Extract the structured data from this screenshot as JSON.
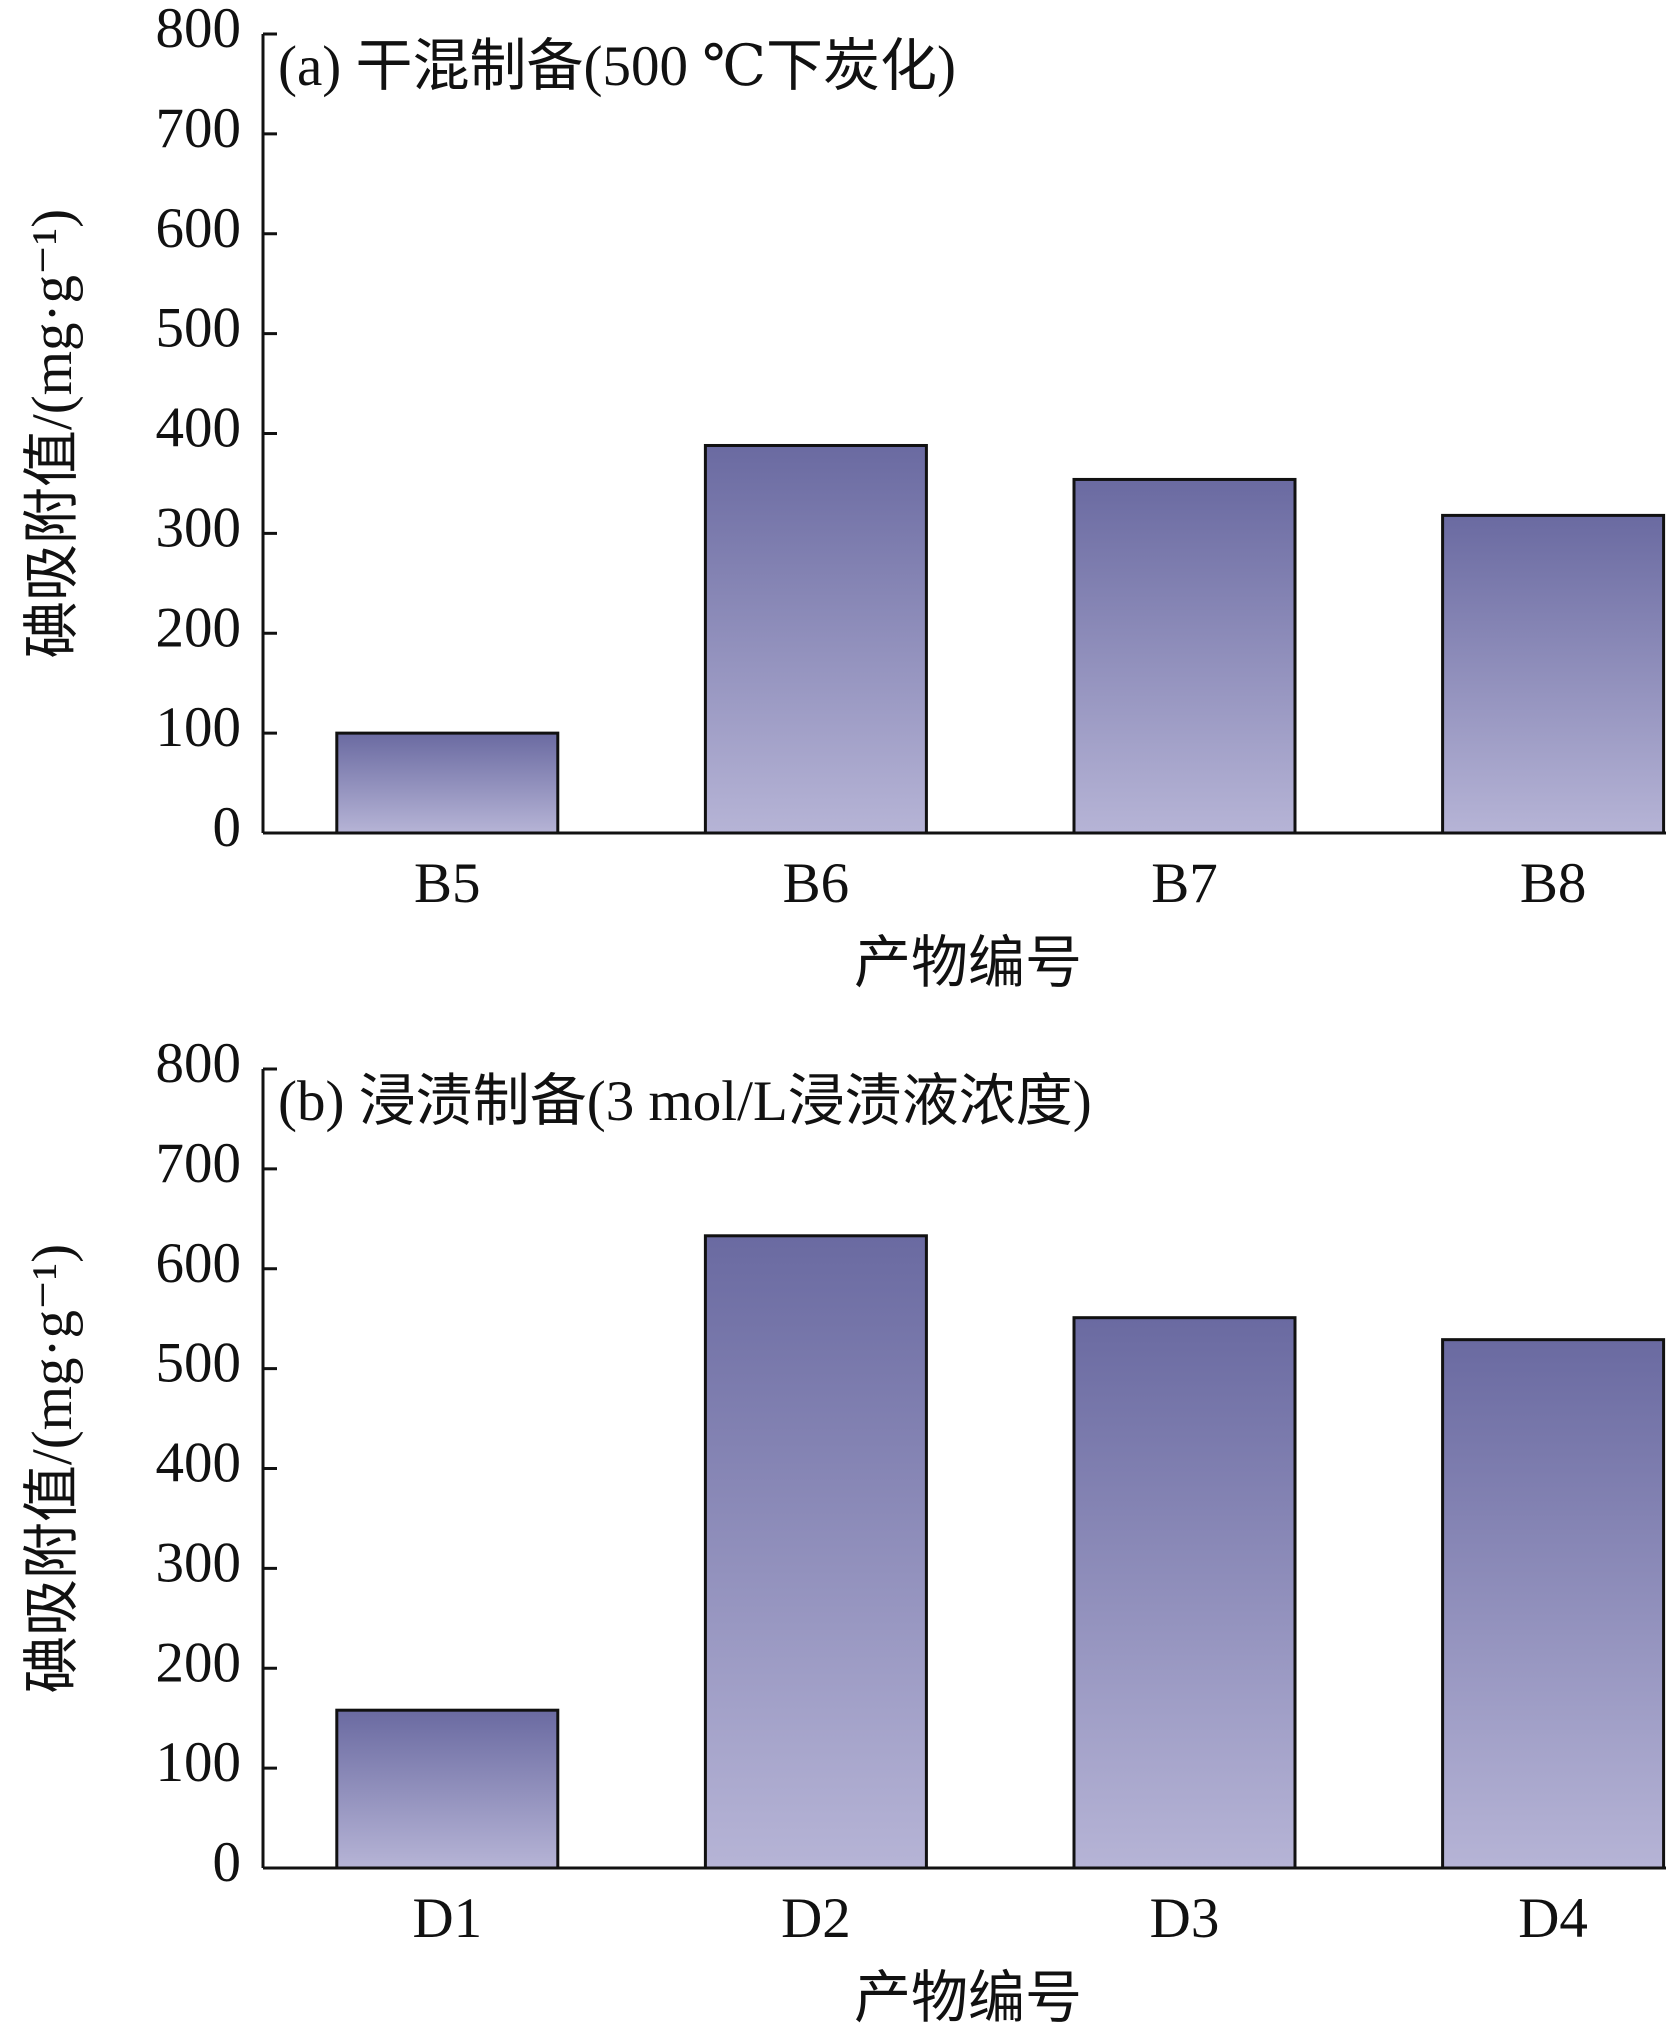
{
  "chart_data": [
    {
      "type": "bar",
      "title": "(a)  干混制备(500 ℃下炭化)",
      "xlabel": "产物编号",
      "ylabel": "碘吸附值/(mg·g⁻¹)",
      "categories": [
        "B5",
        "B6",
        "B7",
        "B8"
      ],
      "values": [
        100,
        388,
        354,
        318
      ],
      "color": [
        "#6a6aa1",
        "#b6b4d6"
      ],
      "ylim": [
        0,
        800
      ],
      "yticks": [
        0,
        100,
        200,
        300,
        400,
        500,
        600,
        700,
        800
      ]
    },
    {
      "type": "bar",
      "title": "(b)  浸渍制备(3 mol/L浸渍液浓度)",
      "xlabel": "产物编号",
      "ylabel": "碘吸附值/(mg·g⁻¹)",
      "categories": [
        "D1",
        "D2",
        "D3",
        "D4"
      ],
      "values": [
        158,
        633,
        551,
        529
      ],
      "color": [
        "#6a6aa1",
        "#b6b4d6"
      ],
      "ylim": [
        0,
        800
      ],
      "yticks": [
        0,
        100,
        200,
        300,
        400,
        500,
        600,
        700,
        800
      ]
    }
  ]
}
